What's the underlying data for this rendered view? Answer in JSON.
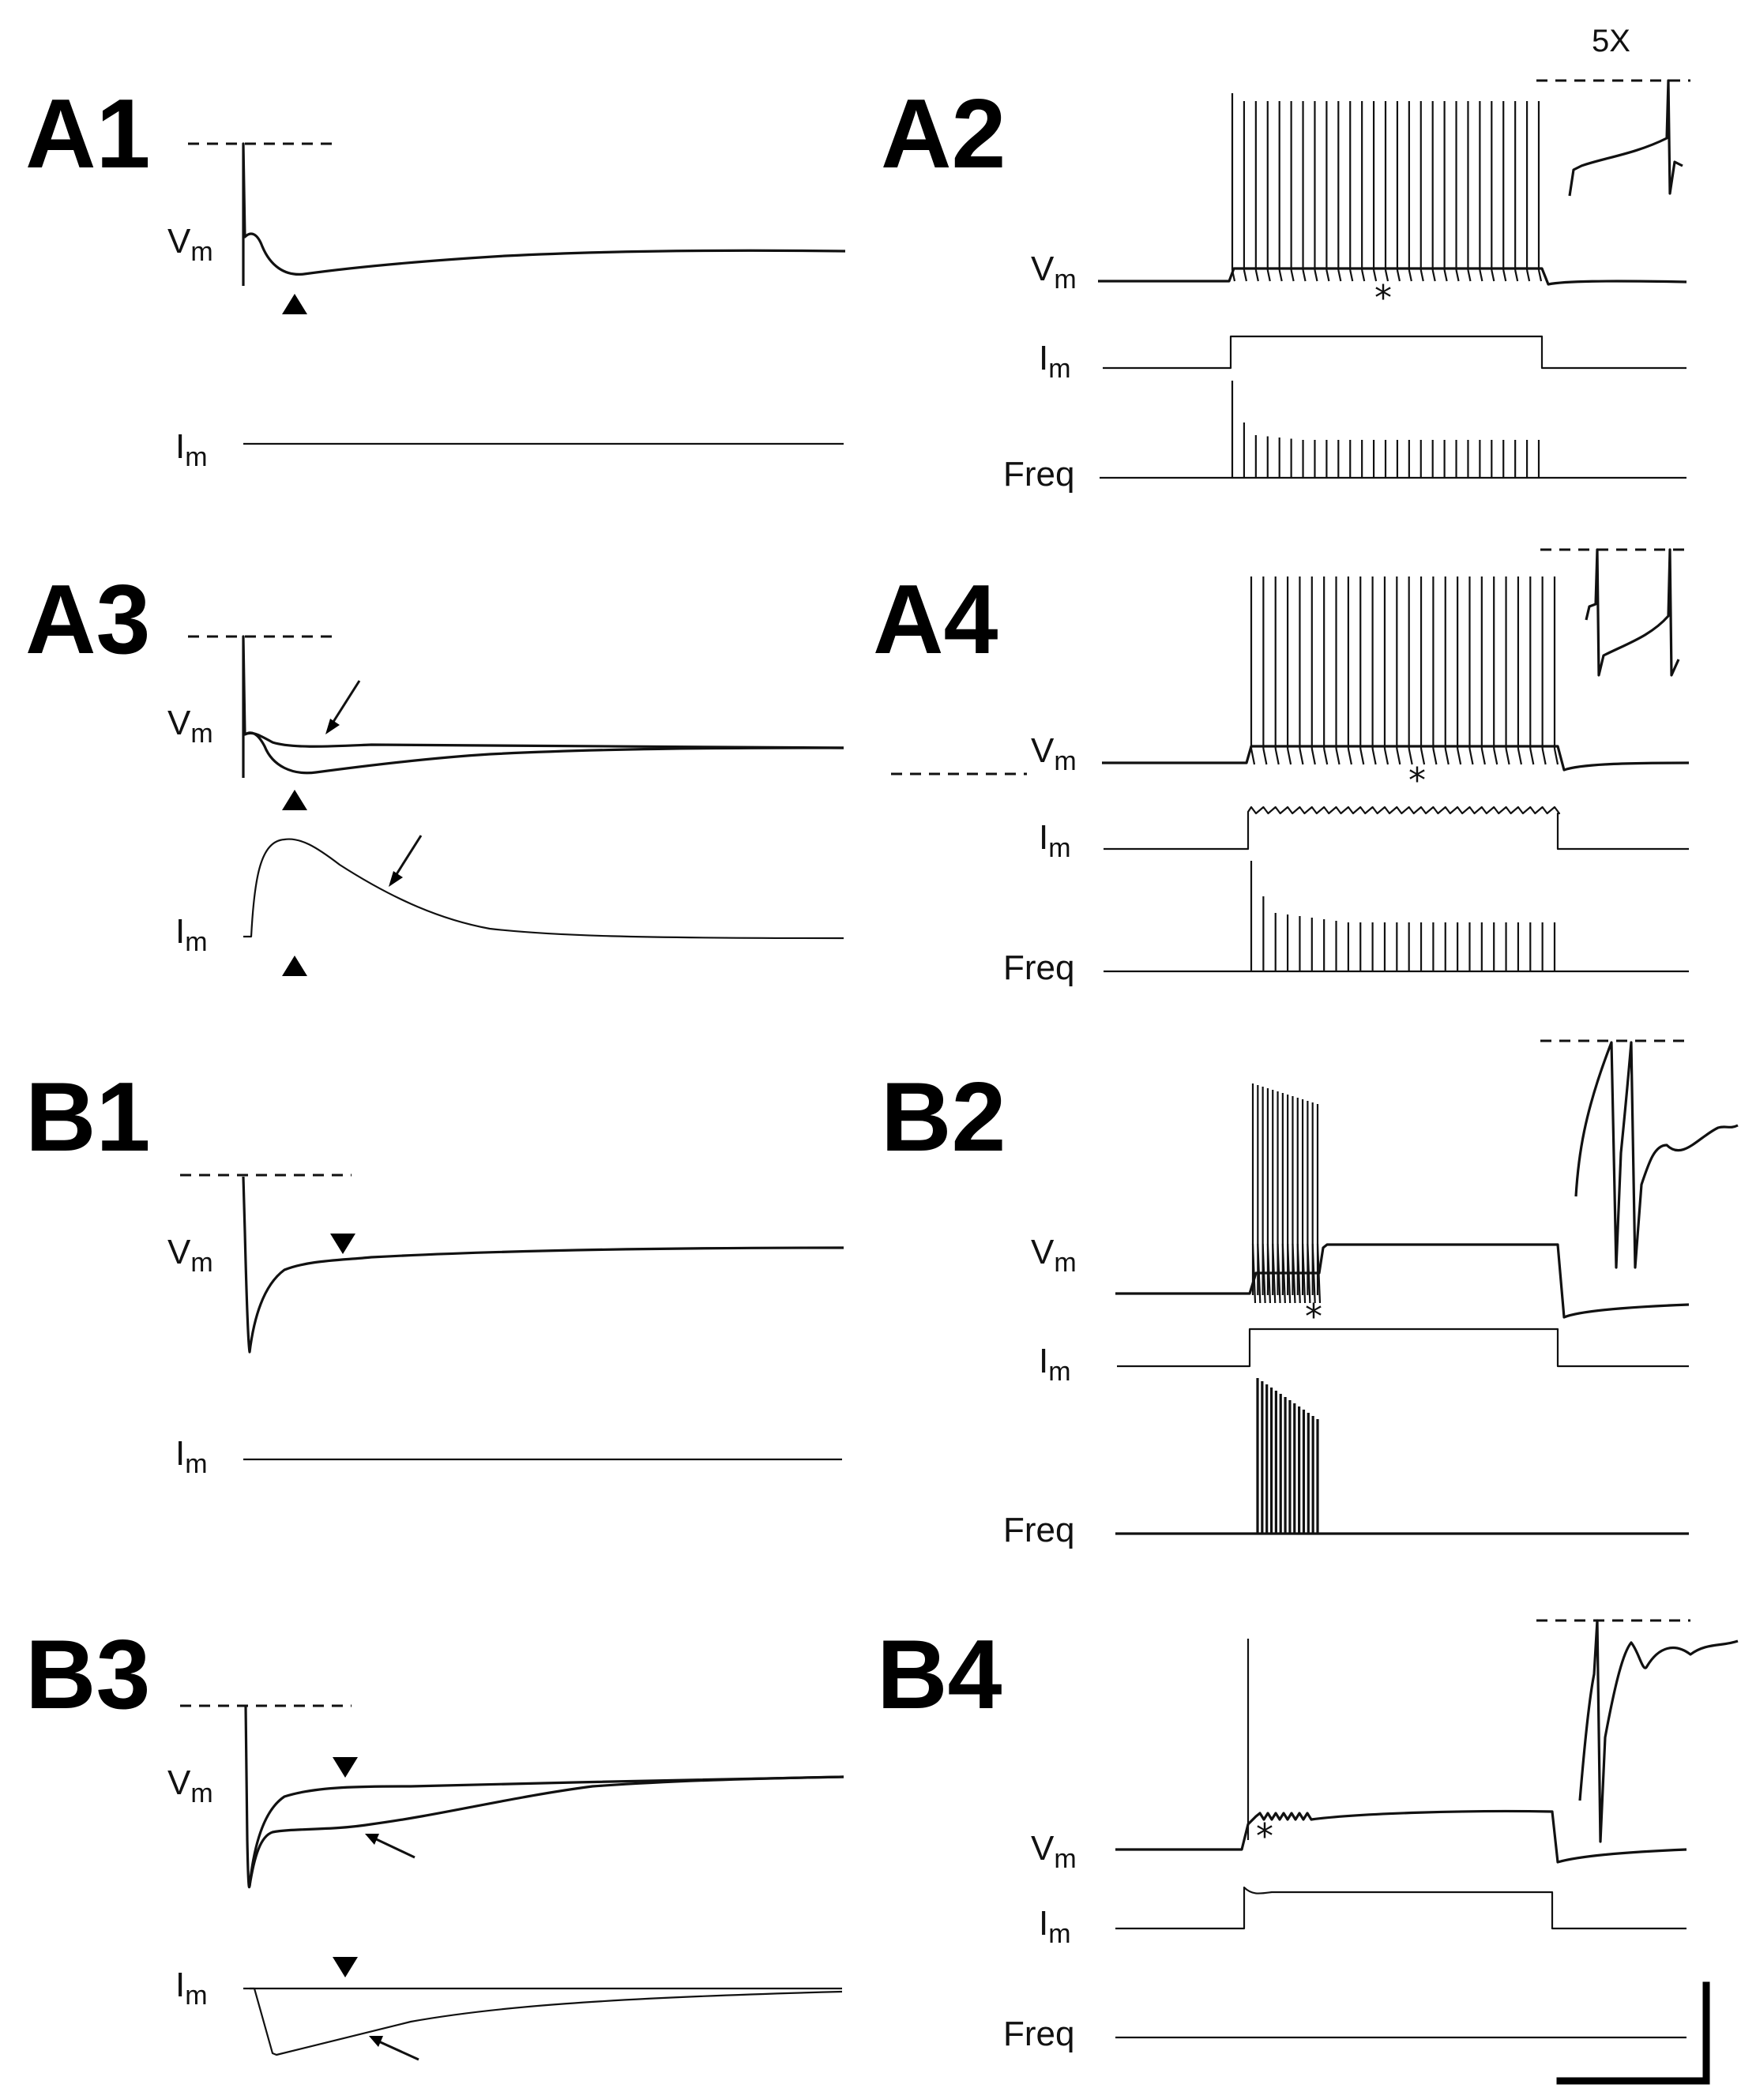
{
  "figure": {
    "inset_magnification": "5X",
    "panels": [
      {
        "id": "A1",
        "label": "A1",
        "trace_labels": [
          "V",
          "m",
          "I",
          "m"
        ]
      },
      {
        "id": "A2",
        "label": "A2",
        "trace_labels": [
          "V",
          "m",
          "I",
          "m",
          "Freq"
        ]
      },
      {
        "id": "A3",
        "label": "A3",
        "trace_labels": [
          "V",
          "m",
          "I",
          "m"
        ]
      },
      {
        "id": "A4",
        "label": "A4",
        "trace_labels": [
          "V",
          "m",
          "I",
          "m",
          "Freq"
        ]
      },
      {
        "id": "B1",
        "label": "B1",
        "trace_labels": [
          "V",
          "m",
          "I",
          "m"
        ]
      },
      {
        "id": "B2",
        "label": "B2",
        "trace_labels": [
          "V",
          "m",
          "I",
          "m",
          "Freq"
        ]
      },
      {
        "id": "B3",
        "label": "B3",
        "trace_labels": [
          "V",
          "m",
          "I",
          "m"
        ]
      },
      {
        "id": "B4",
        "label": "B4",
        "trace_labels": [
          "V",
          "m",
          "I",
          "m",
          "Freq"
        ]
      }
    ],
    "spike_annotation": "*",
    "spike_trains": {
      "A2": {
        "spike_count": 27
      },
      "A4": {
        "spike_count": 26
      },
      "B2": {
        "spike_count": 14
      },
      "B4": {
        "spike_count": 1
      }
    }
  }
}
